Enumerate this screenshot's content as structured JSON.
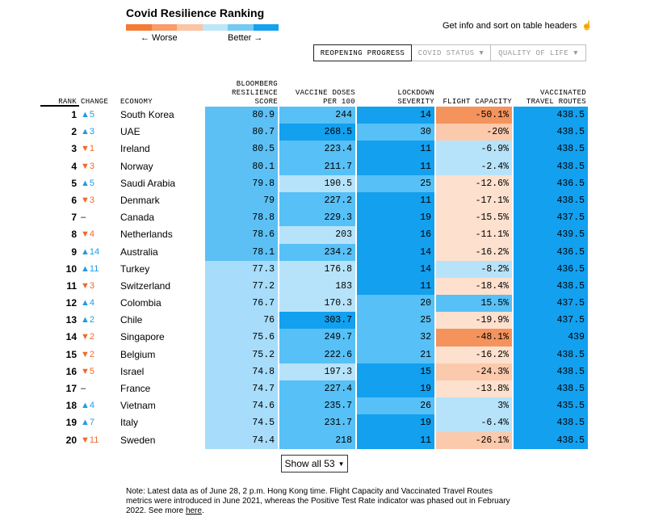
{
  "title": "Covid Resilience Ranking",
  "legend": {
    "worse_label": "← Worse",
    "better_label": "Better →",
    "colors": [
      "#f47b34",
      "#f89c6a",
      "#fbc4a3",
      "#bde6f8",
      "#75c9f4",
      "#14a1ee"
    ]
  },
  "info_text": "Get info and sort on table headers",
  "tabs": [
    {
      "label": "REOPENING PROGRESS",
      "active": true
    },
    {
      "label": "COVID STATUS",
      "active": false,
      "caret": "▼"
    },
    {
      "label": "QUALITY OF LIFE",
      "active": false,
      "caret": "▼"
    }
  ],
  "headers": {
    "rank": "RANK",
    "change": "CHANGE",
    "economy": "ECONOMY",
    "score": "BLOOMBERG\nRESILIENCE\nSCORE",
    "vaccine": "VACCINE DOSES\nPER 100",
    "lockdown": "LOCKDOWN\nSEVERITY",
    "flight": "FLIGHT CAPACITY",
    "vtr": "VACCINATED\nTRAVEL ROUTES"
  },
  "colors": {
    "up": "#1e9be6",
    "down": "#f06a28",
    "score_high": "#5cc0f5",
    "score_mid": "#a7dcfa",
    "blue_dark": "#12a0ef",
    "blue_mid": "#57c0f6",
    "blue_light": "#b7e3fa",
    "orange_dark": "#f5935c",
    "orange_light": "#fbc9ab",
    "orange_pale": "#fde0ce"
  },
  "rows": [
    {
      "rank": "1",
      "dir": "up",
      "change": "▲5",
      "economy": "South Korea",
      "score": "80.9",
      "vaccine": "244",
      "lockdown": "14",
      "flight": "-50.1%",
      "vtr": "438.5",
      "sc": "score_high",
      "vc": "blue_mid",
      "lc": "blue_dark",
      "fc": "orange_dark",
      "tc": "blue_dark"
    },
    {
      "rank": "2",
      "dir": "up",
      "change": "▲3",
      "economy": "UAE",
      "score": "80.7",
      "vaccine": "268.5",
      "lockdown": "30",
      "flight": "-20%",
      "vtr": "438.5",
      "sc": "score_high",
      "vc": "blue_dark",
      "lc": "blue_mid",
      "fc": "orange_light",
      "tc": "blue_dark"
    },
    {
      "rank": "3",
      "dir": "down",
      "change": "▼1",
      "economy": "Ireland",
      "score": "80.5",
      "vaccine": "223.4",
      "lockdown": "11",
      "flight": "-6.9%",
      "vtr": "438.5",
      "sc": "score_high",
      "vc": "blue_mid",
      "lc": "blue_dark",
      "fc": "blue_light",
      "tc": "blue_dark"
    },
    {
      "rank": "4",
      "dir": "down",
      "change": "▼3",
      "economy": "Norway",
      "score": "80.1",
      "vaccine": "211.7",
      "lockdown": "11",
      "flight": "-2.4%",
      "vtr": "438.5",
      "sc": "score_high",
      "vc": "blue_mid",
      "lc": "blue_dark",
      "fc": "blue_light",
      "tc": "blue_dark"
    },
    {
      "rank": "5",
      "dir": "up",
      "change": "▲5",
      "economy": "Saudi Arabia",
      "score": "79.8",
      "vaccine": "190.5",
      "lockdown": "25",
      "flight": "-12.6%",
      "vtr": "436.5",
      "sc": "score_high",
      "vc": "blue_light",
      "lc": "blue_mid",
      "fc": "orange_pale",
      "tc": "blue_dark"
    },
    {
      "rank": "6",
      "dir": "down",
      "change": "▼3",
      "economy": "Denmark",
      "score": "79",
      "vaccine": "227.2",
      "lockdown": "11",
      "flight": "-17.1%",
      "vtr": "438.5",
      "sc": "score_high",
      "vc": "blue_mid",
      "lc": "blue_dark",
      "fc": "orange_pale",
      "tc": "blue_dark"
    },
    {
      "rank": "7",
      "dir": "flat",
      "change": "–",
      "economy": "Canada",
      "score": "78.8",
      "vaccine": "229.3",
      "lockdown": "19",
      "flight": "-15.5%",
      "vtr": "437.5",
      "sc": "score_high",
      "vc": "blue_mid",
      "lc": "blue_dark",
      "fc": "orange_pale",
      "tc": "blue_dark"
    },
    {
      "rank": "8",
      "dir": "down",
      "change": "▼4",
      "economy": "Netherlands",
      "score": "78.6",
      "vaccine": "203",
      "lockdown": "16",
      "flight": "-11.1%",
      "vtr": "439.5",
      "sc": "score_high",
      "vc": "blue_light",
      "lc": "blue_dark",
      "fc": "orange_pale",
      "tc": "blue_dark"
    },
    {
      "rank": "9",
      "dir": "up",
      "change": "▲14",
      "economy": "Australia",
      "score": "78.1",
      "vaccine": "234.2",
      "lockdown": "14",
      "flight": "-16.2%",
      "vtr": "436.5",
      "sc": "score_high",
      "vc": "blue_mid",
      "lc": "blue_dark",
      "fc": "orange_pale",
      "tc": "blue_dark"
    },
    {
      "rank": "10",
      "dir": "up",
      "change": "▲11",
      "economy": "Turkey",
      "score": "77.3",
      "vaccine": "176.8",
      "lockdown": "14",
      "flight": "-8.2%",
      "vtr": "436.5",
      "sc": "score_mid",
      "vc": "blue_light",
      "lc": "blue_dark",
      "fc": "blue_light",
      "tc": "blue_dark"
    },
    {
      "rank": "11",
      "dir": "down",
      "change": "▼3",
      "economy": "Switzerland",
      "score": "77.2",
      "vaccine": "183",
      "lockdown": "11",
      "flight": "-18.4%",
      "vtr": "438.5",
      "sc": "score_mid",
      "vc": "blue_light",
      "lc": "blue_dark",
      "fc": "orange_pale",
      "tc": "blue_dark"
    },
    {
      "rank": "12",
      "dir": "up",
      "change": "▲4",
      "economy": "Colombia",
      "score": "76.7",
      "vaccine": "170.3",
      "lockdown": "20",
      "flight": "15.5%",
      "vtr": "437.5",
      "sc": "score_mid",
      "vc": "blue_light",
      "lc": "blue_mid",
      "fc": "blue_mid",
      "tc": "blue_dark"
    },
    {
      "rank": "13",
      "dir": "up",
      "change": "▲2",
      "economy": "Chile",
      "score": "76",
      "vaccine": "303.7",
      "lockdown": "25",
      "flight": "-19.9%",
      "vtr": "437.5",
      "sc": "score_mid",
      "vc": "blue_dark",
      "lc": "blue_mid",
      "fc": "orange_pale",
      "tc": "blue_dark"
    },
    {
      "rank": "14",
      "dir": "down",
      "change": "▼2",
      "economy": "Singapore",
      "score": "75.6",
      "vaccine": "249.7",
      "lockdown": "32",
      "flight": "-48.1%",
      "vtr": "439",
      "sc": "score_mid",
      "vc": "blue_mid",
      "lc": "blue_mid",
      "fc": "orange_dark",
      "tc": "blue_dark"
    },
    {
      "rank": "15",
      "dir": "down",
      "change": "▼2",
      "economy": "Belgium",
      "score": "75.2",
      "vaccine": "222.6",
      "lockdown": "21",
      "flight": "-16.2%",
      "vtr": "438.5",
      "sc": "score_mid",
      "vc": "blue_mid",
      "lc": "blue_mid",
      "fc": "orange_pale",
      "tc": "blue_dark"
    },
    {
      "rank": "16",
      "dir": "down",
      "change": "▼5",
      "economy": "Israel",
      "score": "74.8",
      "vaccine": "197.3",
      "lockdown": "15",
      "flight": "-24.3%",
      "vtr": "438.5",
      "sc": "score_mid",
      "vc": "blue_light",
      "lc": "blue_dark",
      "fc": "orange_light",
      "tc": "blue_dark"
    },
    {
      "rank": "17",
      "dir": "flat",
      "change": "–",
      "economy": "France",
      "score": "74.7",
      "vaccine": "227.4",
      "lockdown": "19",
      "flight": "-13.8%",
      "vtr": "438.5",
      "sc": "score_mid",
      "vc": "blue_mid",
      "lc": "blue_dark",
      "fc": "orange_pale",
      "tc": "blue_dark"
    },
    {
      "rank": "18",
      "dir": "up",
      "change": "▲4",
      "economy": "Vietnam",
      "score": "74.6",
      "vaccine": "235.7",
      "lockdown": "26",
      "flight": "3%",
      "vtr": "435.5",
      "sc": "score_mid",
      "vc": "blue_mid",
      "lc": "blue_mid",
      "fc": "blue_light",
      "tc": "blue_dark"
    },
    {
      "rank": "19",
      "dir": "up",
      "change": "▲7",
      "economy": "Italy",
      "score": "74.5",
      "vaccine": "231.7",
      "lockdown": "19",
      "flight": "-6.4%",
      "vtr": "438.5",
      "sc": "score_mid",
      "vc": "blue_mid",
      "lc": "blue_dark",
      "fc": "blue_light",
      "tc": "blue_dark"
    },
    {
      "rank": "20",
      "dir": "down",
      "change": "▼11",
      "economy": "Sweden",
      "score": "74.4",
      "vaccine": "218",
      "lockdown": "11",
      "flight": "-26.1%",
      "vtr": "438.5",
      "sc": "score_mid",
      "vc": "blue_mid",
      "lc": "blue_dark",
      "fc": "orange_light",
      "tc": "blue_dark"
    }
  ],
  "show_all": {
    "label": "Show all 53",
    "caret": "▼"
  },
  "note": {
    "text": "Note: Latest data as of June 28, 2 p.m. Hong Kong time. Flight Capacity and Vaccinated Travel Routes metrics were introduced in June 2021, whereas the Positive Test Rate indicator was phased out in February 2022. See more ",
    "link": "here",
    "end": "."
  }
}
